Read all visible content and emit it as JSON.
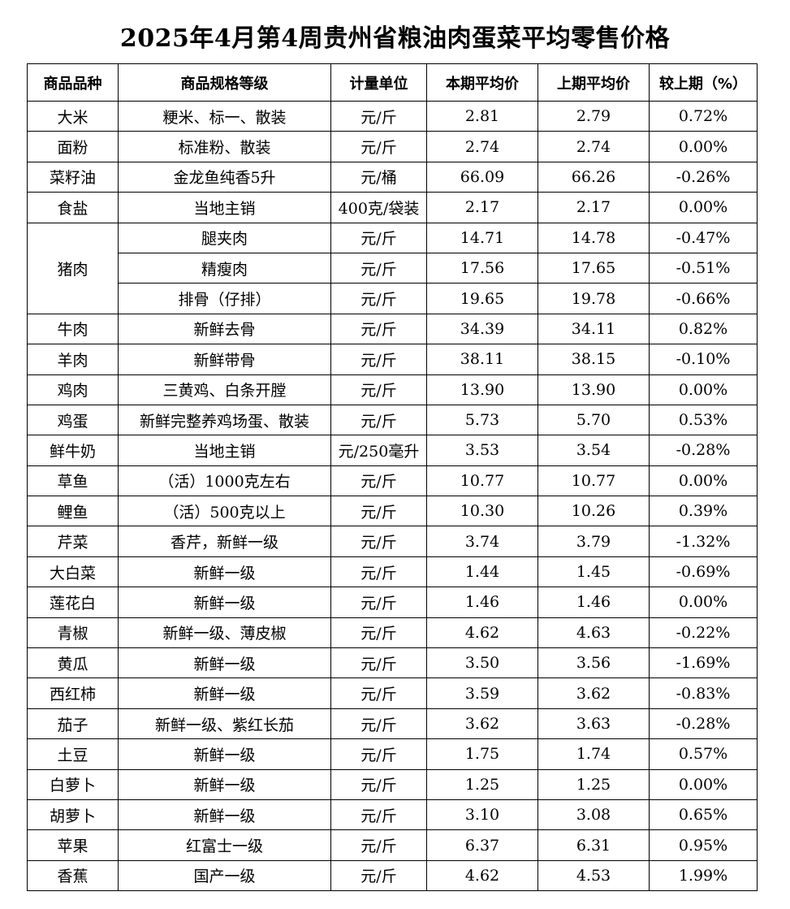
{
  "title": "2025年4月第4周贵州省粮油肉蛋菜平均零售价格",
  "table": {
    "headers": [
      "商品品种",
      "商品规格等级",
      "计量单位",
      "本期平均价",
      "上期平均价",
      "较上期（%）"
    ],
    "rows": [
      {
        "name": "大米",
        "spec": "粳米、标一、散装",
        "unit": "元/斤",
        "current": "2.81",
        "previous": "2.79",
        "change": "0.72%"
      },
      {
        "name": "面粉",
        "spec": "标准粉、散装",
        "unit": "元/斤",
        "current": "2.74",
        "previous": "2.74",
        "change": "0.00%"
      },
      {
        "name": "菜籽油",
        "spec": "金龙鱼纯香5升",
        "unit": "元/桶",
        "current": "66.09",
        "previous": "66.26",
        "change": "-0.26%"
      },
      {
        "name": "食盐",
        "spec": "当地主销",
        "unit": "400克/袋装",
        "current": "2.17",
        "previous": "2.17",
        "change": "0.00%"
      },
      {
        "name": "猪肉",
        "spec": "腿夹肉",
        "unit": "元/斤",
        "current": "14.71",
        "previous": "14.78",
        "change": "-0.47%"
      },
      {
        "name": "",
        "spec": "精瘦肉",
        "unit": "元/斤",
        "current": "17.56",
        "previous": "17.65",
        "change": "-0.51%"
      },
      {
        "name": "",
        "spec": "排骨（仔排）",
        "unit": "元/斤",
        "current": "19.65",
        "previous": "19.78",
        "change": "-0.66%"
      },
      {
        "name": "牛肉",
        "spec": "新鲜去骨",
        "unit": "元/斤",
        "current": "34.39",
        "previous": "34.11",
        "change": "0.82%"
      },
      {
        "name": "羊肉",
        "spec": "新鲜带骨",
        "unit": "元/斤",
        "current": "38.11",
        "previous": "38.15",
        "change": "-0.10%"
      },
      {
        "name": "鸡肉",
        "spec": "三黄鸡、白条开膛",
        "unit": "元/斤",
        "current": "13.90",
        "previous": "13.90",
        "change": "0.00%"
      },
      {
        "name": "鸡蛋",
        "spec": "新鲜完整养鸡场蛋、散装",
        "unit": "元/斤",
        "current": "5.73",
        "previous": "5.70",
        "change": "0.53%"
      },
      {
        "name": "鲜牛奶",
        "spec": "当地主销",
        "unit": "元/250毫升",
        "current": "3.53",
        "previous": "3.54",
        "change": "-0.28%"
      },
      {
        "name": "草鱼",
        "spec": "（活）1000克左右",
        "unit": "元/斤",
        "current": "10.77",
        "previous": "10.77",
        "change": "0.00%"
      },
      {
        "name": "鲤鱼",
        "spec": "（活）500克以上",
        "unit": "元/斤",
        "current": "10.30",
        "previous": "10.26",
        "change": "0.39%"
      },
      {
        "name": "芹菜",
        "spec": "香芹，新鲜一级",
        "unit": "元/斤",
        "current": "3.74",
        "previous": "3.79",
        "change": "-1.32%"
      },
      {
        "name": "大白菜",
        "spec": "新鲜一级",
        "unit": "元/斤",
        "current": "1.44",
        "previous": "1.45",
        "change": "-0.69%"
      },
      {
        "name": "莲花白",
        "spec": "新鲜一级",
        "unit": "元/斤",
        "current": "1.46",
        "previous": "1.46",
        "change": "0.00%"
      },
      {
        "name": "青椒",
        "spec": "新鲜一级、薄皮椒",
        "unit": "元/斤",
        "current": "4.62",
        "previous": "4.63",
        "change": "-0.22%"
      },
      {
        "name": "黄瓜",
        "spec": "新鲜一级",
        "unit": "元/斤",
        "current": "3.50",
        "previous": "3.56",
        "change": "-1.69%"
      },
      {
        "name": "西红柿",
        "spec": "新鲜一级",
        "unit": "元/斤",
        "current": "3.59",
        "previous": "3.62",
        "change": "-0.83%"
      },
      {
        "name": "茄子",
        "spec": "新鲜一级、紫红长茄",
        "unit": "元/斤",
        "current": "3.62",
        "previous": "3.63",
        "change": "-0.28%"
      },
      {
        "name": "土豆",
        "spec": "新鲜一级",
        "unit": "元/斤",
        "current": "1.75",
        "previous": "1.74",
        "change": "0.57%"
      },
      {
        "name": "白萝卜",
        "spec": "新鲜一级",
        "unit": "元/斤",
        "current": "1.25",
        "previous": "1.25",
        "change": "0.00%"
      },
      {
        "name": "胡萝卜",
        "spec": "新鲜一级",
        "unit": "元/斤",
        "current": "3.10",
        "previous": "3.08",
        "change": "0.65%"
      },
      {
        "name": "苹果",
        "spec": "红富士一级",
        "unit": "元/斤",
        "current": "6.37",
        "previous": "6.31",
        "change": "0.95%"
      },
      {
        "name": "香蕉",
        "spec": "国产一级",
        "unit": "元/斤",
        "current": "4.62",
        "previous": "4.53",
        "change": "1.99%"
      }
    ]
  }
}
